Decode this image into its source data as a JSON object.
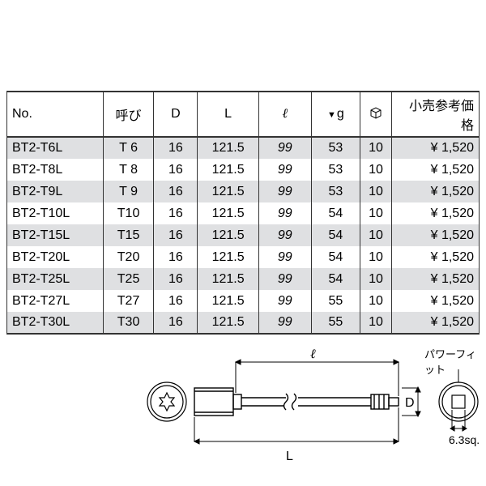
{
  "table": {
    "headers": {
      "no": "No.",
      "yobi": "呼び",
      "d": "D",
      "l": "L",
      "ell": "ℓ",
      "g": "g",
      "box": "⌷",
      "price": "小売参考価格"
    },
    "rows": [
      {
        "no": "BT2-T6L",
        "yobi": "T  6",
        "d": "16",
        "l": "121.5",
        "ell": "99",
        "g": "53",
        "box": "10",
        "price": "¥  1,520"
      },
      {
        "no": "BT2-T8L",
        "yobi": "T  8",
        "d": "16",
        "l": "121.5",
        "ell": "99",
        "g": "53",
        "box": "10",
        "price": "¥  1,520"
      },
      {
        "no": "BT2-T9L",
        "yobi": "T  9",
        "d": "16",
        "l": "121.5",
        "ell": "99",
        "g": "53",
        "box": "10",
        "price": "¥  1,520"
      },
      {
        "no": "BT2-T10L",
        "yobi": "T10",
        "d": "16",
        "l": "121.5",
        "ell": "99",
        "g": "54",
        "box": "10",
        "price": "¥  1,520"
      },
      {
        "no": "BT2-T15L",
        "yobi": "T15",
        "d": "16",
        "l": "121.5",
        "ell": "99",
        "g": "54",
        "box": "10",
        "price": "¥  1,520"
      },
      {
        "no": "BT2-T20L",
        "yobi": "T20",
        "d": "16",
        "l": "121.5",
        "ell": "99",
        "g": "54",
        "box": "10",
        "price": "¥  1,520"
      },
      {
        "no": "BT2-T25L",
        "yobi": "T25",
        "d": "16",
        "l": "121.5",
        "ell": "99",
        "g": "54",
        "box": "10",
        "price": "¥  1,520"
      },
      {
        "no": "BT2-T27L",
        "yobi": "T27",
        "d": "16",
        "l": "121.5",
        "ell": "99",
        "g": "55",
        "box": "10",
        "price": "¥  1,520"
      },
      {
        "no": "BT2-T30L",
        "yobi": "T30",
        "d": "16",
        "l": "121.5",
        "ell": "99",
        "g": "55",
        "box": "10",
        "price": "¥  1,520"
      }
    ]
  },
  "diagram": {
    "ell_label": "ℓ",
    "L_label": "L",
    "D_label": "D",
    "sq_label": "6.3sq.",
    "power_fit": "パワーフィット",
    "colors": {
      "stroke": "#000000",
      "fill": "#ffffff"
    }
  }
}
